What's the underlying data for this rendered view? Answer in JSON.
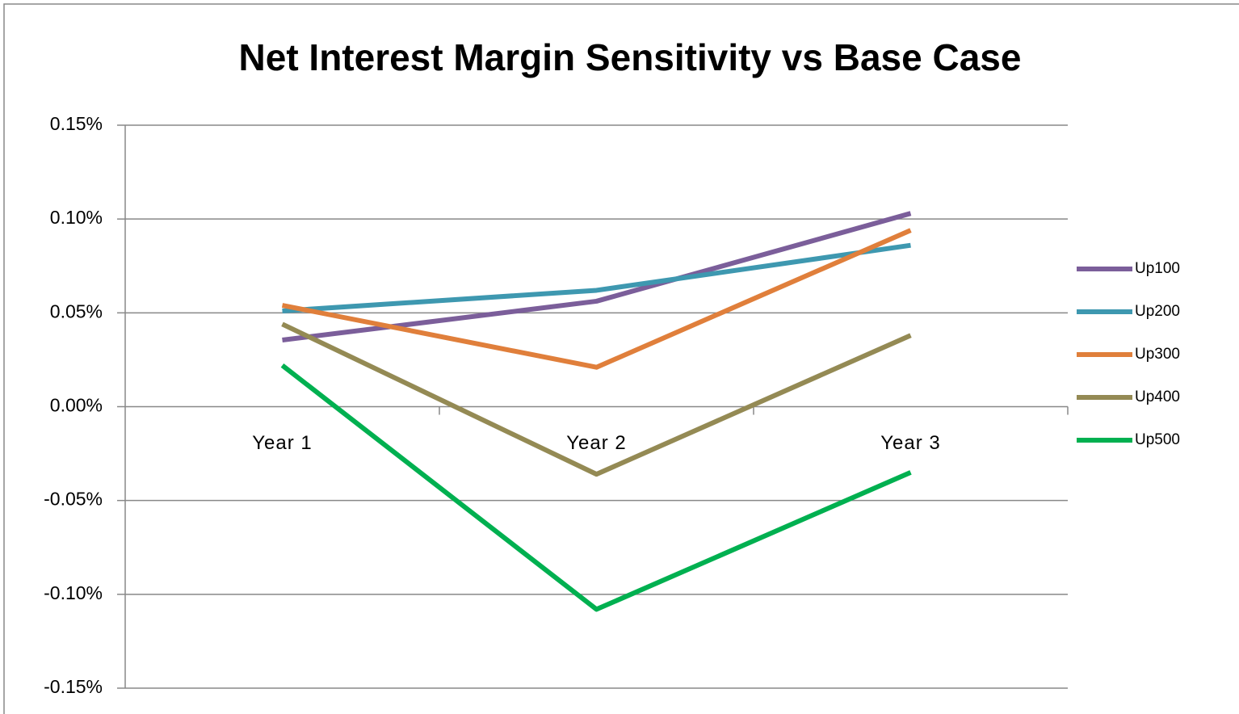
{
  "chart_data": {
    "type": "line",
    "title": "Net Interest Margin Sensitivity vs Base Case",
    "categories": [
      "Year 1",
      "Year 2",
      "Year 3"
    ],
    "series": [
      {
        "name": "Up100",
        "color": "#7b5e9a",
        "values": [
          0.0355,
          0.0562,
          0.103
        ]
      },
      {
        "name": "Up200",
        "color": "#3e98b0",
        "values": [
          0.051,
          0.062,
          0.086
        ]
      },
      {
        "name": "Up300",
        "color": "#e07f3b",
        "values": [
          0.054,
          0.021,
          0.094
        ]
      },
      {
        "name": "Up400",
        "color": "#948a54",
        "values": [
          0.044,
          -0.036,
          0.038
        ]
      },
      {
        "name": "Up500",
        "color": "#00b050",
        "values": [
          0.022,
          -0.108,
          -0.035
        ]
      }
    ],
    "ylim": [
      -0.15,
      0.15
    ],
    "yticks": [
      {
        "value": -0.15,
        "label": "-0.15%"
      },
      {
        "value": -0.1,
        "label": "-0.10%"
      },
      {
        "value": -0.05,
        "label": "-0.05%"
      },
      {
        "value": 0,
        "label": "0.00%"
      },
      {
        "value": 0.05,
        "label": "0.05%"
      },
      {
        "value": 0.1,
        "label": "0.10%"
      },
      {
        "value": 0.15,
        "label": "0.15%"
      }
    ],
    "grid": true,
    "legend": "right"
  }
}
